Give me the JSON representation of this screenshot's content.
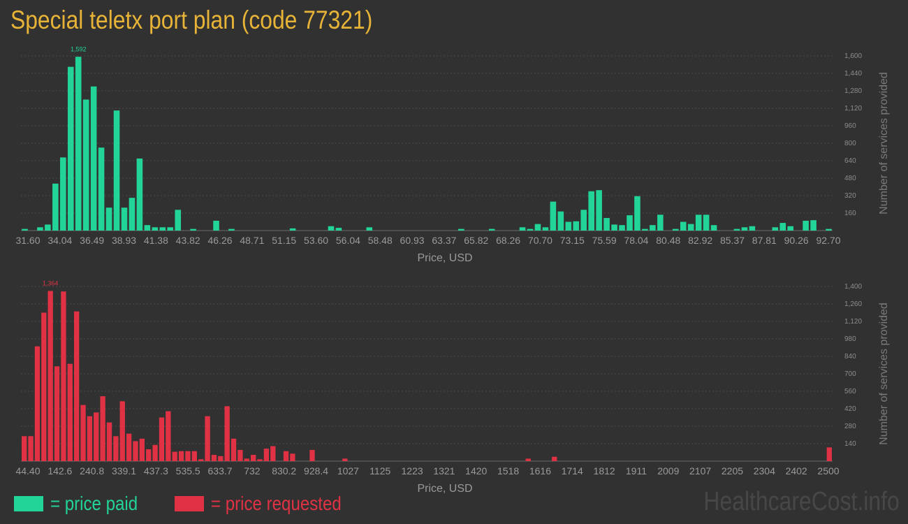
{
  "page": {
    "title": "Special teletx port plan (code 77321)",
    "watermark": "HealthcareCost.info"
  },
  "legend": {
    "paid": {
      "label": "= price paid",
      "color": "#22d497"
    },
    "requested": {
      "label": "= price requested",
      "color": "#e03244"
    }
  },
  "chart_data": [
    {
      "type": "bar",
      "title": "",
      "xlabel": "Price, USD",
      "ylabel": "Number of services provided",
      "color": "#22d497",
      "xlim": [
        31.6,
        92.7
      ],
      "ylim": [
        0,
        1600
      ],
      "yticks": [
        160,
        320,
        480,
        640,
        800,
        960,
        1120,
        1280,
        1440,
        1600
      ],
      "ytick_labels": [
        "160",
        "320",
        "480",
        "640",
        "800",
        "960",
        "1,120",
        "1,280",
        "1,440",
        "1,600"
      ],
      "xtick_labels": [
        "31.60",
        "34.04",
        "36.49",
        "38.93",
        "41.38",
        "43.82",
        "46.26",
        "48.71",
        "51.15",
        "53.60",
        "56.04",
        "58.48",
        "60.93",
        "63.37",
        "65.82",
        "68.26",
        "70.70",
        "73.15",
        "75.59",
        "78.04",
        "80.48",
        "82.92",
        "85.37",
        "87.81",
        "90.26",
        "92.70"
      ],
      "peak_label": "1,592",
      "peak_index": 7,
      "values": [
        15,
        0,
        30,
        55,
        430,
        670,
        1500,
        1592,
        1200,
        1320,
        760,
        210,
        1100,
        210,
        300,
        660,
        50,
        30,
        30,
        30,
        190,
        0,
        15,
        0,
        0,
        90,
        0,
        15,
        0,
        0,
        0,
        0,
        0,
        0,
        0,
        20,
        0,
        0,
        0,
        0,
        40,
        25,
        0,
        0,
        0,
        30,
        0,
        0,
        0,
        0,
        0,
        0,
        0,
        0,
        0,
        0,
        0,
        15,
        0,
        0,
        0,
        15,
        0,
        0,
        0,
        30,
        15,
        60,
        30,
        265,
        175,
        80,
        85,
        190,
        360,
        370,
        115,
        55,
        50,
        140,
        315,
        15,
        50,
        145,
        0,
        15,
        80,
        60,
        145,
        145,
        50,
        0,
        0,
        15,
        30,
        40,
        0,
        0,
        30,
        70,
        40,
        0,
        90,
        95,
        0,
        15
      ]
    },
    {
      "type": "bar",
      "title": "",
      "xlabel": "Price, USD",
      "ylabel": "Number of services provided",
      "color": "#e03244",
      "xlim": [
        44.4,
        2500
      ],
      "ylim": [
        0,
        1400
      ],
      "yticks": [
        140,
        280,
        420,
        560,
        700,
        840,
        980,
        1120,
        1260,
        1400
      ],
      "ytick_labels": [
        "140",
        "280",
        "420",
        "560",
        "700",
        "840",
        "980",
        "1,120",
        "1,260",
        "1,400"
      ],
      "xtick_labels": [
        "44.40",
        "142.6",
        "240.8",
        "339.1",
        "437.3",
        "535.5",
        "633.7",
        "732",
        "830.2",
        "928.4",
        "1027",
        "1125",
        "1223",
        "1321",
        "1420",
        "1518",
        "1616",
        "1714",
        "1812",
        "1911",
        "2009",
        "2107",
        "2205",
        "2304",
        "2402",
        "2500"
      ],
      "peak_label": "1,364",
      "peak_index": 4,
      "values": [
        200,
        200,
        920,
        1190,
        1364,
        760,
        1360,
        780,
        1200,
        450,
        360,
        390,
        520,
        310,
        200,
        480,
        220,
        160,
        180,
        95,
        130,
        350,
        400,
        75,
        80,
        80,
        80,
        15,
        360,
        50,
        40,
        440,
        180,
        90,
        20,
        50,
        15,
        100,
        120,
        0,
        80,
        60,
        0,
        0,
        90,
        0,
        0,
        0,
        0,
        20,
        0,
        0,
        0,
        0,
        0,
        0,
        0,
        0,
        0,
        0,
        0,
        0,
        0,
        0,
        0,
        0,
        0,
        0,
        0,
        0,
        0,
        0,
        0,
        0,
        0,
        0,
        0,
        20,
        0,
        0,
        0,
        35,
        0,
        0,
        0,
        0,
        0,
        0,
        0,
        0,
        0,
        0,
        0,
        0,
        0,
        0,
        0,
        0,
        0,
        0,
        0,
        0,
        0,
        0,
        0,
        0,
        0,
        0,
        0,
        0,
        0,
        0,
        0,
        0,
        0,
        0,
        0,
        0,
        0,
        0,
        0,
        0,
        0,
        110
      ]
    }
  ]
}
